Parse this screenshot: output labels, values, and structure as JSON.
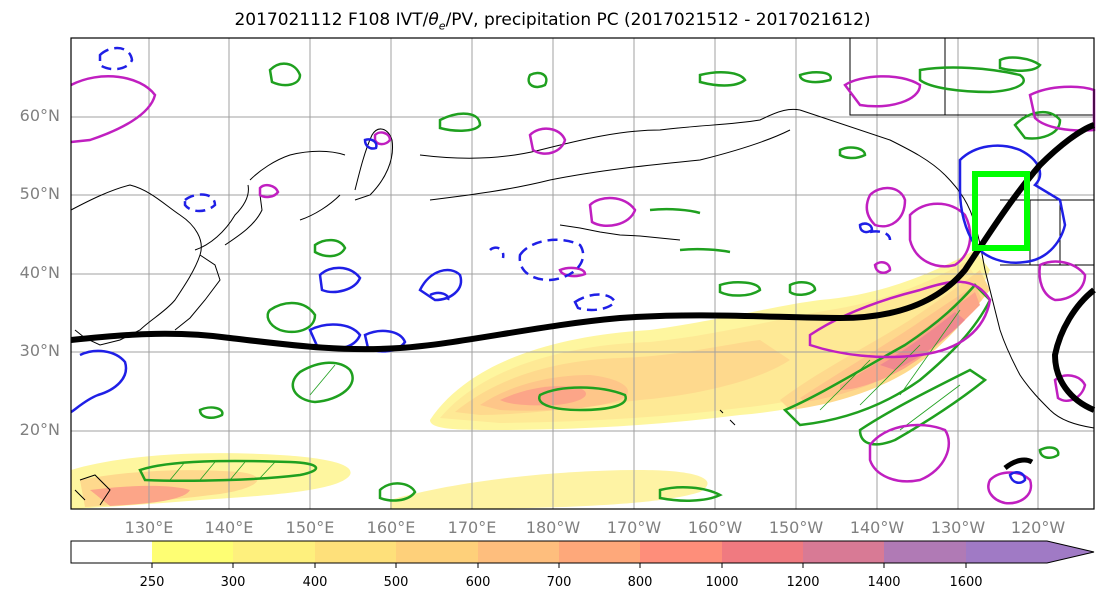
{
  "title": {
    "prefix": "2017021112 F108 IVT/",
    "theta": "θ",
    "theta_sub": "e",
    "suffix": "/PV, precipitation PC (2017021512 - 2017021612)"
  },
  "lat_labels": [
    "60°N",
    "50°N",
    "40°N",
    "30°N",
    "20°N"
  ],
  "lon_labels": [
    "130°E",
    "140°E",
    "150°E",
    "160°E",
    "170°E",
    "180°W",
    "170°W",
    "160°W",
    "150°W",
    "140°W",
    "130°W",
    "120°W"
  ],
  "colorbar": {
    "levels": [
      "250",
      "300",
      "400",
      "500",
      "600",
      "700",
      "800",
      "1000",
      "1200",
      "1400",
      "1600"
    ],
    "colors": [
      "#ffffff",
      "#fefe73",
      "#fef07d",
      "#fee07a",
      "#fed07a",
      "#febe7d",
      "#fea87a",
      "#fe8e7a",
      "#f07a80",
      "#d87a95",
      "#b07ab5",
      "#a07ac5"
    ]
  },
  "colors": {
    "pv_contour": "#1fa01f",
    "theta_contour": "#c01fc0",
    "neg_contour": "#1f1fe6",
    "box": "#00ff00",
    "jet_line": "#000000",
    "grid": "#a0a0a0"
  }
}
